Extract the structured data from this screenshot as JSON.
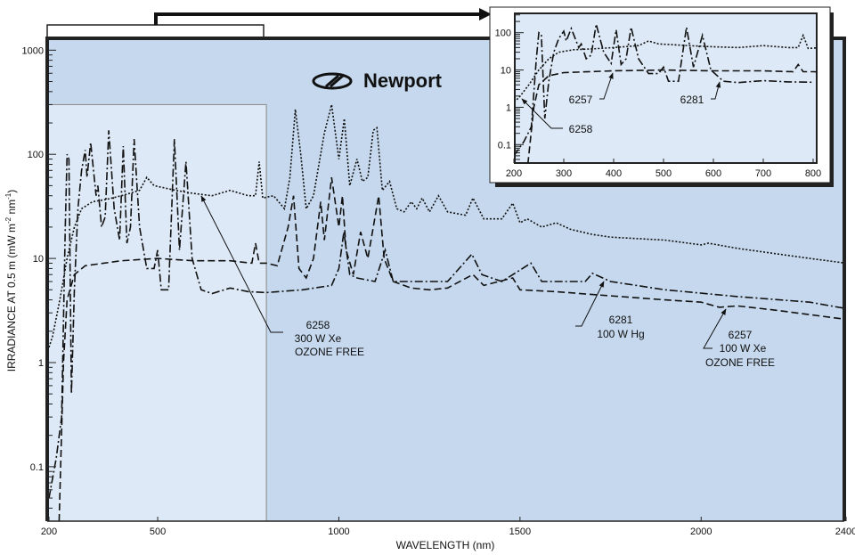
{
  "brand": "Newport",
  "chart_data": {
    "type": "line",
    "title": "",
    "xlabel": "WAVELENGTH (nm)",
    "ylabel": {
      "main": "IRRADIANCE AT 0.5 m (mW m",
      "sup1": "-2",
      "mid": " nm",
      "sup2": "-1",
      "end": ")"
    },
    "xscale": "linear",
    "yscale": "log",
    "xlim": [
      200,
      2400
    ],
    "ylim": [
      0.03,
      1300
    ],
    "xticks": [
      200,
      500,
      1000,
      1500,
      2000,
      2400
    ],
    "yticks": [
      0.1,
      1,
      10,
      100,
      1000
    ],
    "ytick_labels": [
      "0.1",
      "1",
      "10",
      "100",
      "1000"
    ],
    "grid": false,
    "highlight_region": {
      "x": [
        200,
        800
      ],
      "y_max": 300
    },
    "series": [
      {
        "id": "6258",
        "name": "6258 300 W Xe OZONE FREE",
        "style": "dotted",
        "points": [
          [
            200,
            1.4
          ],
          [
            210,
            1.8
          ],
          [
            230,
            4
          ],
          [
            250,
            10
          ],
          [
            270,
            20
          ],
          [
            290,
            30
          ],
          [
            320,
            35
          ],
          [
            360,
            37
          ],
          [
            400,
            40
          ],
          [
            450,
            45
          ],
          [
            470,
            60
          ],
          [
            490,
            50
          ],
          [
            550,
            45
          ],
          [
            600,
            42
          ],
          [
            650,
            40
          ],
          [
            700,
            45
          ],
          [
            750,
            40
          ],
          [
            770,
            40
          ],
          [
            780,
            85
          ],
          [
            790,
            38
          ],
          [
            820,
            40
          ],
          [
            850,
            30
          ],
          [
            865,
            60
          ],
          [
            880,
            270
          ],
          [
            895,
            100
          ],
          [
            910,
            30
          ],
          [
            930,
            40
          ],
          [
            960,
            160
          ],
          [
            980,
            300
          ],
          [
            1000,
            90
          ],
          [
            1015,
            220
          ],
          [
            1030,
            50
          ],
          [
            1050,
            90
          ],
          [
            1065,
            55
          ],
          [
            1080,
            60
          ],
          [
            1095,
            170
          ],
          [
            1105,
            180
          ],
          [
            1120,
            45
          ],
          [
            1140,
            55
          ],
          [
            1160,
            30
          ],
          [
            1180,
            28
          ],
          [
            1200,
            35
          ],
          [
            1215,
            30
          ],
          [
            1230,
            38
          ],
          [
            1250,
            28
          ],
          [
            1275,
            40
          ],
          [
            1300,
            28
          ],
          [
            1350,
            26
          ],
          [
            1370,
            38
          ],
          [
            1400,
            24
          ],
          [
            1450,
            24
          ],
          [
            1480,
            34
          ],
          [
            1500,
            22
          ],
          [
            1520,
            24
          ],
          [
            1560,
            20
          ],
          [
            1600,
            22
          ],
          [
            1640,
            19
          ],
          [
            1700,
            17
          ],
          [
            1750,
            16
          ],
          [
            1900,
            15
          ],
          [
            2000,
            13.5
          ],
          [
            2020,
            14
          ],
          [
            2100,
            12.5
          ],
          [
            2300,
            10
          ],
          [
            2400,
            9
          ]
        ]
      },
      {
        "id": "6281",
        "name": "6281 100 W Hg",
        "style": "dashdot",
        "points": [
          [
            200,
            0.05
          ],
          [
            220,
            0.12
          ],
          [
            235,
            0.3
          ],
          [
            245,
            20
          ],
          [
            250,
            100
          ],
          [
            255,
            90
          ],
          [
            262,
            0.5
          ],
          [
            270,
            5
          ],
          [
            280,
            30
          ],
          [
            290,
            70
          ],
          [
            300,
            110
          ],
          [
            305,
            60
          ],
          [
            315,
            130
          ],
          [
            330,
            40
          ],
          [
            335,
            50
          ],
          [
            345,
            20
          ],
          [
            355,
            25
          ],
          [
            365,
            170
          ],
          [
            380,
            30
          ],
          [
            395,
            15
          ],
          [
            405,
            120
          ],
          [
            415,
            14
          ],
          [
            425,
            20
          ],
          [
            435,
            140
          ],
          [
            450,
            20
          ],
          [
            470,
            8
          ],
          [
            490,
            8
          ],
          [
            500,
            12
          ],
          [
            510,
            5
          ],
          [
            530,
            5
          ],
          [
            546,
            140
          ],
          [
            560,
            12
          ],
          [
            578,
            85
          ],
          [
            595,
            10
          ],
          [
            620,
            5
          ],
          [
            650,
            4.6
          ],
          [
            700,
            5.2
          ],
          [
            750,
            4.8
          ],
          [
            800,
            4.7
          ],
          [
            900,
            5
          ],
          [
            980,
            5.5
          ],
          [
            1000,
            8
          ],
          [
            1014,
            18
          ],
          [
            1030,
            7
          ],
          [
            1050,
            6.5
          ],
          [
            1100,
            6
          ],
          [
            1128,
            12
          ],
          [
            1150,
            6
          ],
          [
            1300,
            6
          ],
          [
            1367,
            11
          ],
          [
            1395,
            7
          ],
          [
            1450,
            6
          ],
          [
            1530,
            9
          ],
          [
            1560,
            6
          ],
          [
            1680,
            6
          ],
          [
            1700,
            7.2
          ],
          [
            1750,
            6
          ],
          [
            1900,
            5
          ],
          [
            2100,
            4.3
          ],
          [
            2300,
            3.8
          ],
          [
            2400,
            3.3
          ]
        ]
      },
      {
        "id": "6257",
        "name": "6257 100 W Xe OZONE FREE",
        "style": "dashed",
        "points": [
          [
            228,
            0.03
          ],
          [
            240,
            1
          ],
          [
            250,
            4
          ],
          [
            270,
            7
          ],
          [
            300,
            8.5
          ],
          [
            400,
            9.5
          ],
          [
            500,
            10
          ],
          [
            600,
            9.5
          ],
          [
            700,
            9.5
          ],
          [
            760,
            9
          ],
          [
            770,
            14
          ],
          [
            780,
            9
          ],
          [
            800,
            9
          ],
          [
            830,
            8.5
          ],
          [
            860,
            20
          ],
          [
            875,
            40
          ],
          [
            890,
            8
          ],
          [
            910,
            6.5
          ],
          [
            930,
            10
          ],
          [
            950,
            35
          ],
          [
            960,
            15
          ],
          [
            980,
            60
          ],
          [
            1000,
            20
          ],
          [
            1010,
            40
          ],
          [
            1020,
            12
          ],
          [
            1040,
            7
          ],
          [
            1060,
            18
          ],
          [
            1080,
            10
          ],
          [
            1100,
            25
          ],
          [
            1110,
            40
          ],
          [
            1125,
            10
          ],
          [
            1150,
            6
          ],
          [
            1200,
            5.2
          ],
          [
            1250,
            5
          ],
          [
            1300,
            5.2
          ],
          [
            1370,
            7
          ],
          [
            1400,
            5.5
          ],
          [
            1480,
            6.5
          ],
          [
            1500,
            5
          ],
          [
            1600,
            4.8
          ],
          [
            1700,
            4.5
          ],
          [
            1900,
            4
          ],
          [
            2000,
            3.8
          ],
          [
            2050,
            3.4
          ],
          [
            2100,
            3.5
          ],
          [
            2200,
            3.2
          ],
          [
            2400,
            2.6
          ]
        ]
      }
    ],
    "annotations": [
      {
        "id": "6258",
        "lines": [
          "6258",
          "300 W Xe",
          "OZONE FREE"
        ]
      },
      {
        "id": "6281",
        "lines": [
          "6281",
          "100 W Hg"
        ]
      },
      {
        "id": "6257",
        "lines": [
          "6257",
          "100 W Xe",
          "OZONE FREE"
        ]
      }
    ],
    "inset": {
      "xlim": [
        200,
        800
      ],
      "ylim": [
        0.032,
        330
      ],
      "xticks": [
        200,
        300,
        400,
        500,
        600,
        700,
        800
      ],
      "yticks": [
        0.1,
        1,
        10,
        100
      ],
      "ytick_labels": [
        "0.1",
        "1",
        "10",
        "100"
      ],
      "annotations": [
        "6257",
        "6281",
        "6258"
      ]
    }
  }
}
